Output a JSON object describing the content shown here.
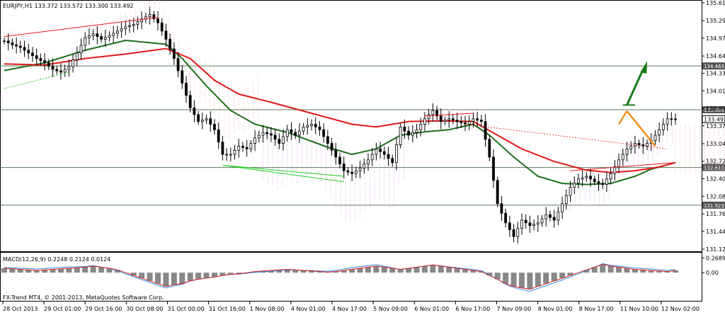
{
  "window": {
    "symbol_info": "EURJPY,H1  133.372 133.572 133.300 133.492",
    "macd_info": "MACD(12,26,9) 0.2248 0.2124 0.0124",
    "copyright": "FX-Trend MT4, © 2001-2013, MetaQuotes Software Corp."
  },
  "colors": {
    "bull": "#000000",
    "bear": "#000000",
    "ma_fast": "#1e6e1e",
    "ma_slow": "#e01a1a",
    "cloud_pink": "#f08a8a",
    "cloud_purple": "#c070d0",
    "level": "#5a7a5a",
    "support_green": "#22cc22",
    "arrow_green": "#1a7a1a",
    "arrow_orange": "#f08c1e",
    "macd_hist": "#888888",
    "macd_main": "#2e8ae6",
    "macd_signal": "#e02020"
  },
  "chart_data": {
    "type": "candlestick",
    "symbol": "EURJPY",
    "timeframe": "H1",
    "ohlc_current": {
      "open": 133.372,
      "high": 133.572,
      "low": 133.3,
      "close": 133.492
    },
    "ylim": [
      131.12,
      135.615
    ],
    "y_ticks": [
      "135.615",
      "135.290",
      "134.970",
      "134.645",
      "134.330",
      "134.010",
      "133.690",
      "133.370",
      "133.045",
      "132.725",
      "132.405",
      "132.085",
      "131.765",
      "131.445",
      "131.120"
    ],
    "x_ticks": [
      "28 Oct 2013",
      "29 Oct 01:00",
      "29 Oct 16:00",
      "30 Oct 08:00",
      "31 Oct 00:00",
      "31 Oct 16:00",
      "1 Nov 08:00",
      "4 Nov 01:00",
      "4 Nov 17:00",
      "5 Nov 09:00",
      "6 Nov 01:00",
      "6 Nov 17:00",
      "7 Nov 09:00",
      "8 Nov 01:00",
      "8 Nov 17:00",
      "11 Nov 10:00",
      "12 Nov 02:00"
    ],
    "levels": [
      {
        "value": 134.463,
        "label": "134.463"
      },
      {
        "value": 133.664,
        "label": "133.664"
      },
      {
        "value": 132.611,
        "label": "132.611"
      },
      {
        "value": 131.923,
        "label": "131.923"
      }
    ],
    "current_price_label": "133.492",
    "close_path": [
      [
        0,
        134.92
      ],
      [
        2,
        134.85
      ],
      [
        4,
        134.8
      ],
      [
        6,
        134.7
      ],
      [
        8,
        134.6
      ],
      [
        10,
        134.52
      ],
      [
        12,
        134.4
      ],
      [
        14,
        134.35
      ],
      [
        16,
        134.45
      ],
      [
        18,
        134.7
      ],
      [
        20,
        134.98
      ],
      [
        22,
        135.05
      ],
      [
        24,
        134.95
      ],
      [
        26,
        135.02
      ],
      [
        28,
        135.1
      ],
      [
        30,
        135.18
      ],
      [
        32,
        135.22
      ],
      [
        34,
        135.32
      ],
      [
        36,
        135.4
      ],
      [
        38,
        135.25
      ],
      [
        40,
        134.95
      ],
      [
        42,
        134.6
      ],
      [
        44,
        134.15
      ],
      [
        46,
        133.7
      ],
      [
        48,
        133.45
      ],
      [
        50,
        133.5
      ],
      [
        52,
        133.3
      ],
      [
        54,
        132.85
      ],
      [
        56,
        132.85
      ],
      [
        58,
        133.0
      ],
      [
        60,
        132.95
      ],
      [
        62,
        133.15
      ],
      [
        64,
        133.25
      ],
      [
        66,
        133.2
      ],
      [
        68,
        133.05
      ],
      [
        70,
        133.3
      ],
      [
        72,
        133.2
      ],
      [
        74,
        133.35
      ],
      [
        76,
        133.4
      ],
      [
        78,
        133.3
      ],
      [
        80,
        133.05
      ],
      [
        82,
        132.8
      ],
      [
        84,
        132.55
      ],
      [
        86,
        132.5
      ],
      [
        88,
        132.6
      ],
      [
        90,
        132.75
      ],
      [
        92,
        132.95
      ],
      [
        94,
        132.85
      ],
      [
        96,
        132.7
      ],
      [
        98,
        133.35
      ],
      [
        100,
        133.2
      ],
      [
        102,
        133.3
      ],
      [
        104,
        133.5
      ],
      [
        106,
        133.65
      ],
      [
        108,
        133.45
      ],
      [
        110,
        133.5
      ],
      [
        112,
        133.45
      ],
      [
        114,
        133.4
      ],
      [
        116,
        133.5
      ],
      [
        118,
        133.45
      ],
      [
        120,
        132.8
      ],
      [
        122,
        131.95
      ],
      [
        124,
        131.6
      ],
      [
        126,
        131.35
      ],
      [
        128,
        131.65
      ],
      [
        130,
        131.55
      ],
      [
        132,
        131.6
      ],
      [
        134,
        131.75
      ],
      [
        136,
        131.65
      ],
      [
        138,
        131.95
      ],
      [
        140,
        132.25
      ],
      [
        142,
        132.4
      ],
      [
        144,
        132.45
      ],
      [
        146,
        132.35
      ],
      [
        148,
        132.3
      ],
      [
        150,
        132.5
      ],
      [
        152,
        132.75
      ],
      [
        154,
        132.95
      ],
      [
        156,
        133.05
      ],
      [
        158,
        133.0
      ],
      [
        160,
        133.1
      ],
      [
        162,
        133.3
      ],
      [
        164,
        133.5
      ],
      [
        166,
        133.492
      ]
    ],
    "series": [
      {
        "kind": "ma_fast",
        "values": [
          [
            0,
            134.38
          ],
          [
            10,
            134.52
          ],
          [
            20,
            134.75
          ],
          [
            30,
            134.93
          ],
          [
            40,
            134.86
          ],
          [
            44,
            134.6
          ],
          [
            50,
            134.1
          ],
          [
            56,
            133.65
          ],
          [
            62,
            133.4
          ],
          [
            70,
            133.25
          ],
          [
            80,
            132.98
          ],
          [
            86,
            132.85
          ],
          [
            92,
            132.95
          ],
          [
            98,
            133.2
          ],
          [
            104,
            133.26
          ],
          [
            110,
            133.3
          ],
          [
            116,
            133.4
          ],
          [
            120,
            133.2
          ],
          [
            126,
            132.8
          ],
          [
            132,
            132.45
          ],
          [
            138,
            132.32
          ],
          [
            144,
            132.3
          ],
          [
            150,
            132.32
          ],
          [
            156,
            132.45
          ],
          [
            160,
            132.58
          ],
          [
            166,
            132.7
          ]
        ]
      },
      {
        "kind": "ma_slow",
        "values": [
          [
            0,
            134.5
          ],
          [
            10,
            134.48
          ],
          [
            20,
            134.6
          ],
          [
            30,
            134.68
          ],
          [
            40,
            134.78
          ],
          [
            46,
            134.6
          ],
          [
            52,
            134.2
          ],
          [
            58,
            133.95
          ],
          [
            66,
            133.8
          ],
          [
            76,
            133.6
          ],
          [
            86,
            133.4
          ],
          [
            92,
            133.35
          ],
          [
            100,
            133.45
          ],
          [
            108,
            133.46
          ],
          [
            116,
            133.45
          ],
          [
            122,
            133.2
          ],
          [
            128,
            132.95
          ],
          [
            136,
            132.72
          ],
          [
            144,
            132.56
          ],
          [
            150,
            132.52
          ],
          [
            156,
            132.55
          ],
          [
            162,
            132.62
          ],
          [
            166,
            132.7
          ]
        ]
      }
    ],
    "macd": {
      "ylim": [
        -0.5,
        0.35
      ],
      "y_ticks": [
        "0.2689",
        "0.00"
      ],
      "histogram": [
        0.08,
        0.07,
        0.06,
        0.05,
        0.04,
        0.05,
        0.06,
        0.07,
        0.08,
        0.09,
        0.1,
        0.12,
        0.1,
        0.08,
        0.05,
        0.0,
        -0.05,
        -0.1,
        -0.15,
        -0.2,
        -0.25,
        -0.22,
        -0.2,
        -0.15,
        -0.12,
        -0.1,
        -0.08,
        -0.05,
        -0.03,
        -0.02,
        0.0,
        0.02,
        0.03,
        0.04,
        0.05,
        0.06,
        0.05,
        0.04,
        0.03,
        0.02,
        0.01,
        0.02,
        0.04,
        0.06,
        0.08,
        0.1,
        0.12,
        0.1,
        0.08,
        0.06,
        0.08,
        0.1,
        0.12,
        0.14,
        0.12,
        0.1,
        0.08,
        0.06,
        0.04,
        0.02,
        -0.05,
        -0.12,
        -0.2,
        -0.25,
        -0.28,
        -0.3,
        -0.25,
        -0.2,
        -0.15,
        -0.1,
        -0.05,
        0.0,
        0.05,
        0.1,
        0.15,
        0.12,
        0.1,
        0.08,
        0.06,
        0.05,
        0.04,
        0.03,
        0.02,
        0.04
      ]
    }
  }
}
